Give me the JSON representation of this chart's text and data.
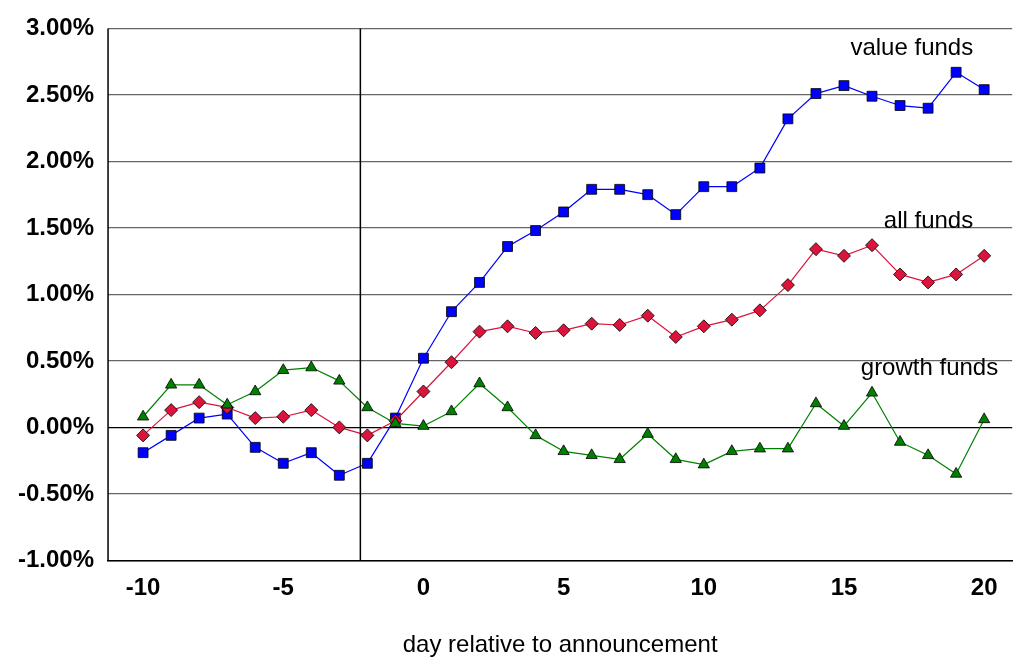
{
  "chart_data": {
    "type": "line",
    "xlabel": "day relative to announcement",
    "x": [
      -10,
      -9,
      -8,
      -7,
      -6,
      -5,
      -4,
      -3,
      -2,
      -1,
      0,
      1,
      2,
      3,
      4,
      5,
      6,
      7,
      8,
      9,
      10,
      11,
      12,
      13,
      14,
      15,
      16,
      17,
      18,
      19,
      20
    ],
    "series": [
      {
        "name": "value funds",
        "color": "#0000ff",
        "marker": "square",
        "values": [
          -0.19,
          -0.06,
          0.07,
          0.1,
          -0.15,
          -0.27,
          -0.19,
          -0.36,
          -0.27,
          0.07,
          0.52,
          0.87,
          1.09,
          1.36,
          1.48,
          1.62,
          1.79,
          1.79,
          1.75,
          1.6,
          1.81,
          1.81,
          1.95,
          2.32,
          2.51,
          2.57,
          2.49,
          2.42,
          2.4,
          2.67,
          2.54
        ]
      },
      {
        "name": "all funds",
        "color": "#dc143c",
        "marker": "diamond",
        "values": [
          -0.06,
          0.13,
          0.19,
          0.15,
          0.07,
          0.08,
          0.13,
          0.0,
          -0.06,
          0.05,
          0.27,
          0.49,
          0.72,
          0.76,
          0.71,
          0.73,
          0.78,
          0.77,
          0.84,
          0.68,
          0.76,
          0.81,
          0.88,
          1.07,
          1.34,
          1.29,
          1.37,
          1.15,
          1.09,
          1.15,
          1.29
        ]
      },
      {
        "name": "growth funds",
        "color": "#008000",
        "marker": "triangle",
        "values": [
          0.08,
          0.32,
          0.32,
          0.17,
          0.27,
          0.43,
          0.45,
          0.35,
          0.15,
          0.03,
          0.01,
          0.12,
          0.33,
          0.15,
          -0.06,
          -0.18,
          -0.21,
          -0.24,
          -0.05,
          -0.24,
          -0.28,
          -0.18,
          -0.16,
          -0.16,
          0.18,
          0.01,
          0.26,
          -0.11,
          -0.21,
          -0.35,
          0.06
        ]
      }
    ],
    "xlim": [
      -11.25,
      21
    ],
    "xticks": [
      -10,
      -5,
      0,
      5,
      10,
      15,
      20
    ],
    "ylim": [
      -1,
      3
    ],
    "yticks": [
      {
        "value": -1,
        "label": "-1.00%"
      },
      {
        "value": -0.5,
        "label": "-0.50%"
      },
      {
        "value": 0,
        "label": "0.00%"
      },
      {
        "value": 0.5,
        "label": "0.50%"
      },
      {
        "value": 1,
        "label": "1.00%"
      },
      {
        "value": 1.5,
        "label": "1.50%"
      },
      {
        "value": 2,
        "label": "2.00%"
      },
      {
        "value": 2.5,
        "label": "2.50%"
      },
      {
        "value": 3,
        "label": "3.00%"
      }
    ],
    "ref_lines": [
      {
        "axis": "x",
        "value": -2.25,
        "color": "#000000"
      }
    ],
    "grid": "y",
    "legend": false
  }
}
